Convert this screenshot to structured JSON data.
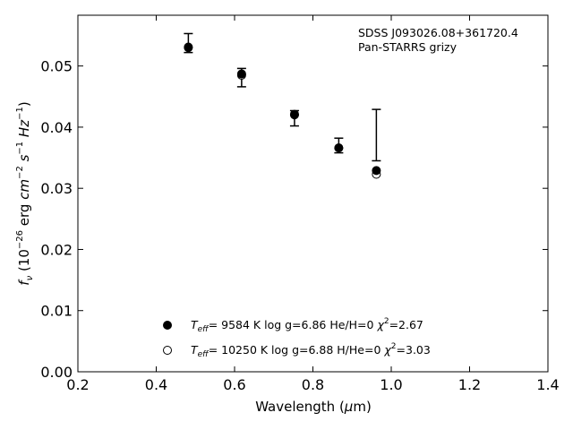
{
  "chart_data": {
    "type": "scatter",
    "annotation": {
      "line1": "SDSS J093026.08+361720.4",
      "line2": "Pan-STARRS grizy"
    },
    "xlabel_pre": "Wavelength (",
    "xlabel_mu": "μ",
    "xlabel_post": "m)",
    "ylabel": {
      "f": "f",
      "nu": "ν",
      "open": " (10",
      "exp1": "−26",
      "erg": " erg ",
      "cm": "cm",
      "exp2": "−2",
      "s": " s",
      "exp3": "−1",
      "hz": " Hz",
      "exp4": "−1",
      "close": ")"
    },
    "xlim": [
      0.2,
      1.4
    ],
    "ylim": [
      0.0,
      0.0583
    ],
    "xticks": [
      0.2,
      0.4,
      0.6,
      0.8,
      1.0,
      1.2,
      1.4
    ],
    "xtick_labels": [
      "0.2",
      "0.4",
      "0.6",
      "0.8",
      "1.0",
      "1.2",
      "1.4"
    ],
    "yticks": [
      0.0,
      0.01,
      0.02,
      0.03,
      0.04,
      0.05
    ],
    "ytick_labels": [
      "0.00",
      "0.01",
      "0.02",
      "0.03",
      "0.04",
      "0.05"
    ],
    "observed": [
      {
        "x": 0.482,
        "lo": 0.0522,
        "hi": 0.0553
      },
      {
        "x": 0.618,
        "lo": 0.0466,
        "hi": 0.0496
      },
      {
        "x": 0.753,
        "lo": 0.0402,
        "hi": 0.0427
      },
      {
        "x": 0.866,
        "lo": 0.0358,
        "hi": 0.0382
      },
      {
        "x": 0.962,
        "lo": 0.0345,
        "hi": 0.0429
      }
    ],
    "series": [
      {
        "marker": "filled",
        "x": [
          0.482,
          0.618,
          0.753,
          0.866,
          0.962
        ],
        "y": [
          0.0531,
          0.0487,
          0.0421,
          0.0366,
          0.0329
        ]
      },
      {
        "marker": "open",
        "x": [
          0.482,
          0.618,
          0.753,
          0.866,
          0.962
        ],
        "y": [
          0.053,
          0.0485,
          0.042,
          0.0366,
          0.0323
        ]
      }
    ],
    "legend": [
      {
        "marker": "filled",
        "t": "T",
        "eff": "eff",
        "values": "=  9584 K  log g=6.86  He/H=0  ",
        "chi": "χ",
        "two": "2",
        "chi_val": "=2.67"
      },
      {
        "marker": "open",
        "t": "T",
        "eff": "eff",
        "values": "= 10250 K  log g=6.88  H/He=0  ",
        "chi": "χ",
        "two": "2",
        "chi_val": "=3.03"
      }
    ],
    "legend_position": "lower-center",
    "annotation_position": "top-right",
    "grid": false,
    "colors": {
      "marker": "#000000",
      "axes": "#000000",
      "background": "#ffffff"
    }
  }
}
